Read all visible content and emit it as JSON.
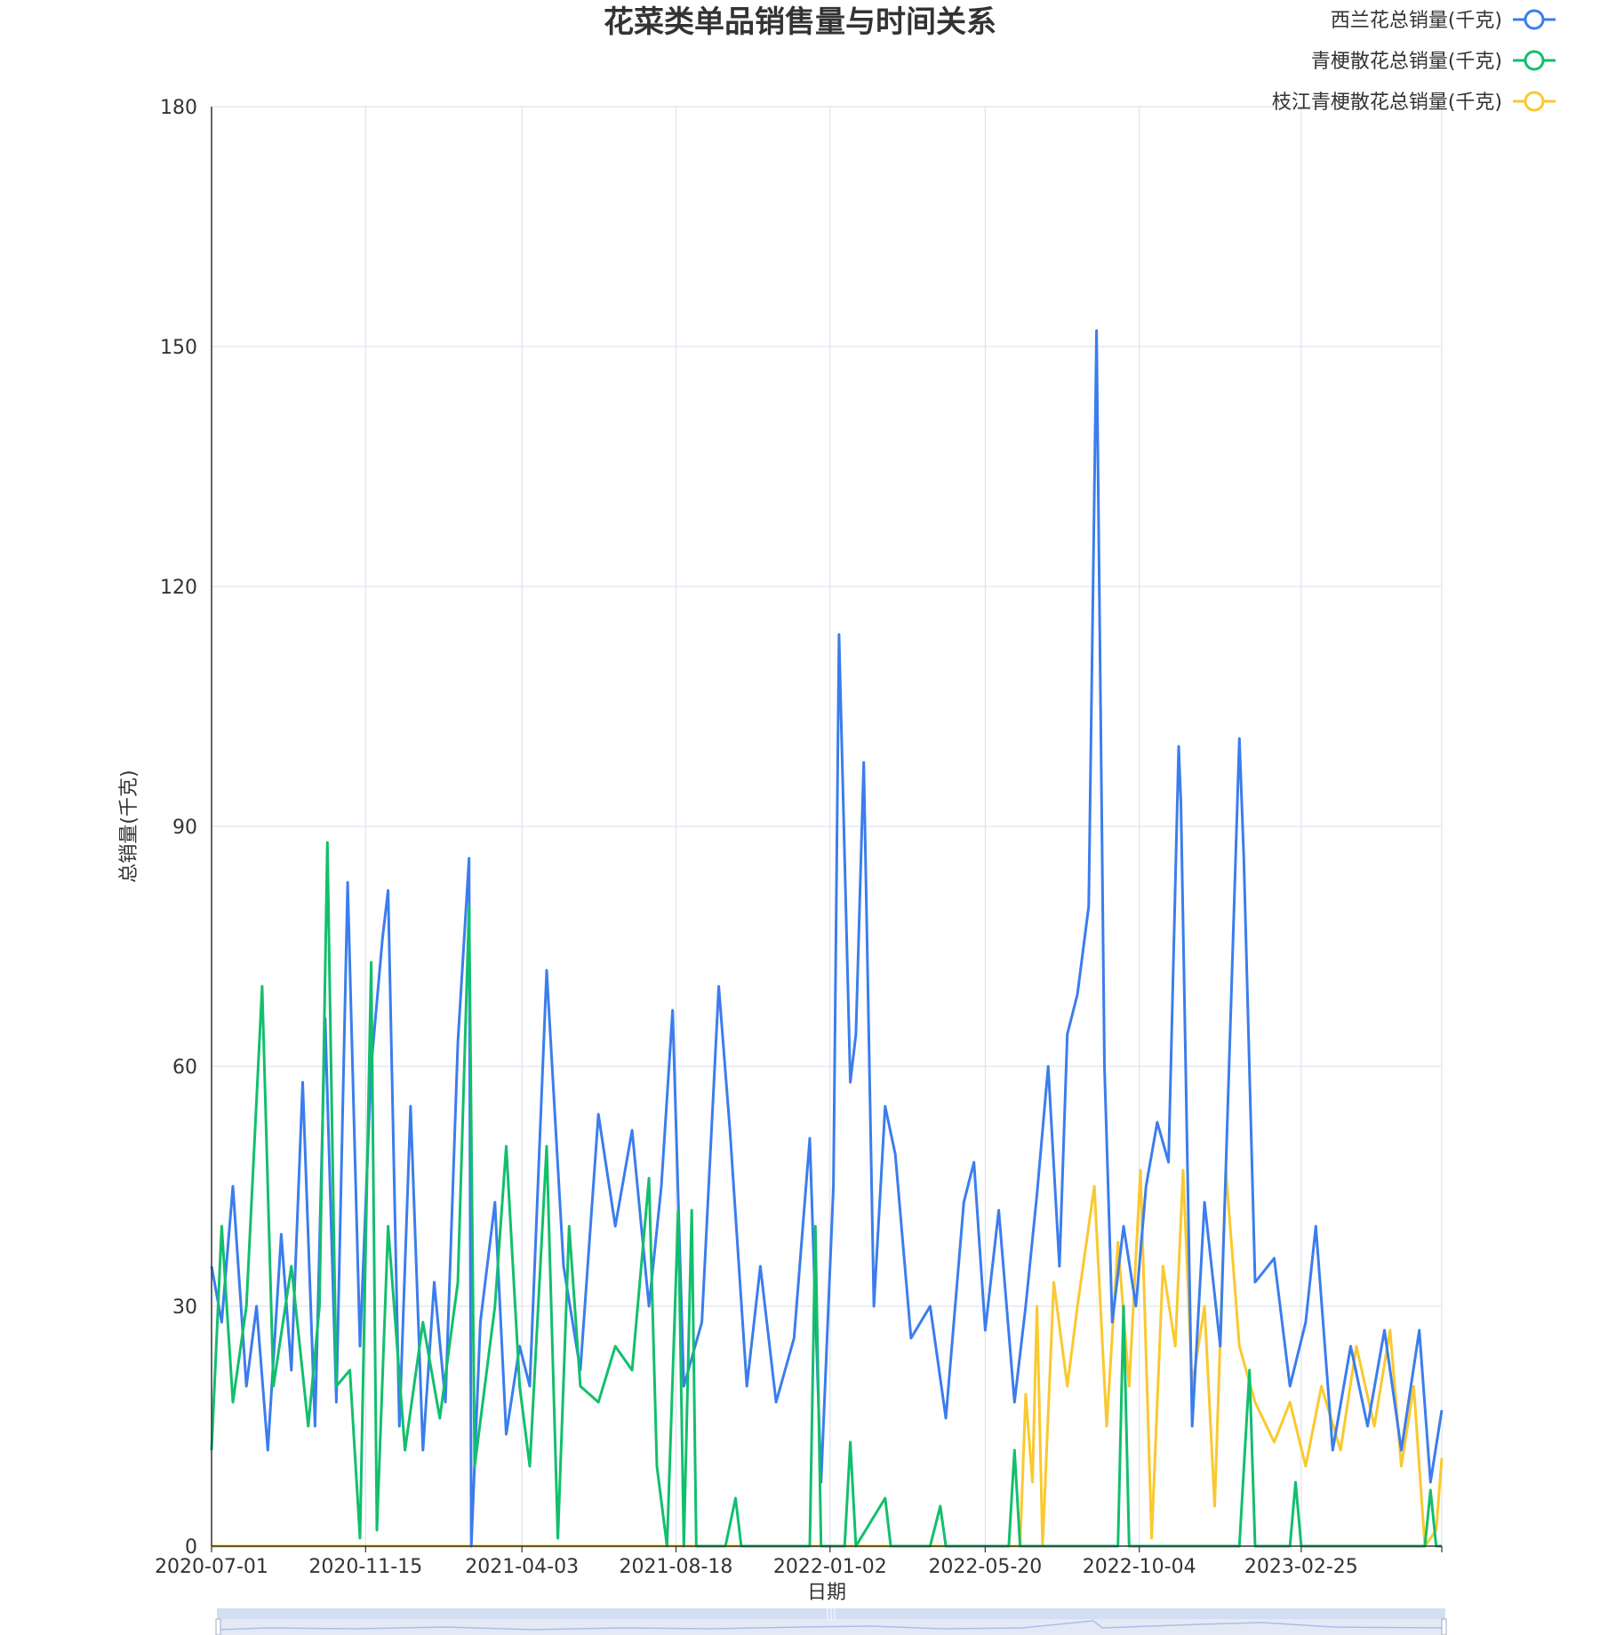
{
  "chart_data": {
    "type": "line",
    "title": "花菜类单品销售量与时间关系",
    "xlabel": "日期",
    "ylabel": "总销量(千克)",
    "ylim": [
      0,
      180
    ],
    "y_ticks": [
      0,
      30,
      60,
      90,
      120,
      150,
      180
    ],
    "x_range": [
      "2020-07-01",
      "2023-06-30"
    ],
    "x_ticks": [
      "2020-07-01",
      "2020-11-15",
      "2021-04-03",
      "2021-08-18",
      "2022-01-02",
      "2022-05-20",
      "2022-10-04",
      "2023-02-25"
    ],
    "grid": true,
    "legend_position": "top-right",
    "data_zoom_slider": true,
    "series": [
      {
        "name": "西兰花总销量(千克)",
        "color": "#3b7ded",
        "points": [
          [
            "2020-07-01",
            35
          ],
          [
            "2020-07-10",
            28
          ],
          [
            "2020-07-20",
            45
          ],
          [
            "2020-08-01",
            20
          ],
          [
            "2020-08-10",
            30
          ],
          [
            "2020-08-20",
            12
          ],
          [
            "2020-09-01",
            39
          ],
          [
            "2020-09-10",
            22
          ],
          [
            "2020-09-20",
            58
          ],
          [
            "2020-10-01",
            15
          ],
          [
            "2020-10-10",
            66
          ],
          [
            "2020-10-20",
            18
          ],
          [
            "2020-10-30",
            83
          ],
          [
            "2020-11-10",
            25
          ],
          [
            "2020-11-20",
            60
          ],
          [
            "2020-11-30",
            76
          ],
          [
            "2020-12-05",
            82
          ],
          [
            "2020-12-15",
            15
          ],
          [
            "2020-12-25",
            55
          ],
          [
            "2021-01-05",
            12
          ],
          [
            "2021-01-15",
            33
          ],
          [
            "2021-01-25",
            18
          ],
          [
            "2021-02-05",
            63
          ],
          [
            "2021-02-15",
            86
          ],
          [
            "2021-02-17",
            0
          ],
          [
            "2021-02-25",
            28
          ],
          [
            "2021-03-10",
            43
          ],
          [
            "2021-03-20",
            14
          ],
          [
            "2021-04-01",
            25
          ],
          [
            "2021-04-10",
            20
          ],
          [
            "2021-04-25",
            72
          ],
          [
            "2021-05-10",
            35
          ],
          [
            "2021-05-25",
            22
          ],
          [
            "2021-06-10",
            54
          ],
          [
            "2021-06-25",
            40
          ],
          [
            "2021-07-10",
            52
          ],
          [
            "2021-07-25",
            30
          ],
          [
            "2021-08-05",
            45
          ],
          [
            "2021-08-15",
            67
          ],
          [
            "2021-08-25",
            20
          ],
          [
            "2021-09-10",
            28
          ],
          [
            "2021-09-25",
            70
          ],
          [
            "2021-10-05",
            52
          ],
          [
            "2021-10-20",
            20
          ],
          [
            "2021-11-01",
            35
          ],
          [
            "2021-11-15",
            18
          ],
          [
            "2021-12-01",
            26
          ],
          [
            "2021-12-15",
            51
          ],
          [
            "2021-12-25",
            8
          ],
          [
            "2022-01-05",
            45
          ],
          [
            "2022-01-10",
            114
          ],
          [
            "2022-01-20",
            58
          ],
          [
            "2022-01-25",
            64
          ],
          [
            "2022-02-01",
            98
          ],
          [
            "2022-02-10",
            30
          ],
          [
            "2022-02-20",
            55
          ],
          [
            "2022-03-01",
            49
          ],
          [
            "2022-03-15",
            26
          ],
          [
            "2022-04-01",
            30
          ],
          [
            "2022-04-15",
            16
          ],
          [
            "2022-05-01",
            43
          ],
          [
            "2022-05-10",
            48
          ],
          [
            "2022-05-20",
            27
          ],
          [
            "2022-06-01",
            42
          ],
          [
            "2022-06-15",
            18
          ],
          [
            "2022-06-25",
            30
          ],
          [
            "2022-07-05",
            44
          ],
          [
            "2022-07-15",
            60
          ],
          [
            "2022-07-25",
            35
          ],
          [
            "2022-08-01",
            64
          ],
          [
            "2022-08-10",
            69
          ],
          [
            "2022-08-20",
            80
          ],
          [
            "2022-08-27",
            152
          ],
          [
            "2022-09-03",
            60
          ],
          [
            "2022-09-10",
            28
          ],
          [
            "2022-09-20",
            40
          ],
          [
            "2022-10-01",
            30
          ],
          [
            "2022-10-10",
            45
          ],
          [
            "2022-10-20",
            53
          ],
          [
            "2022-10-30",
            48
          ],
          [
            "2022-11-08",
            100
          ],
          [
            "2022-11-10",
            93
          ],
          [
            "2022-11-20",
            15
          ],
          [
            "2022-12-01",
            43
          ],
          [
            "2022-12-15",
            25
          ],
          [
            "2023-01-01",
            101
          ],
          [
            "2023-01-05",
            86
          ],
          [
            "2023-01-15",
            33
          ],
          [
            "2023-02-01",
            36
          ],
          [
            "2023-02-15",
            20
          ],
          [
            "2023-03-01",
            28
          ],
          [
            "2023-03-10",
            40
          ],
          [
            "2023-03-25",
            12
          ],
          [
            "2023-04-10",
            25
          ],
          [
            "2023-04-25",
            15
          ],
          [
            "2023-05-10",
            27
          ],
          [
            "2023-05-25",
            12
          ],
          [
            "2023-06-10",
            27
          ],
          [
            "2023-06-20",
            8
          ],
          [
            "2023-06-30",
            17
          ]
        ]
      },
      {
        "name": "青梗散花总销量(千克)",
        "color": "#12bf6c",
        "points": [
          [
            "2020-07-01",
            12
          ],
          [
            "2020-07-10",
            40
          ],
          [
            "2020-07-20",
            18
          ],
          [
            "2020-08-01",
            30
          ],
          [
            "2020-08-15",
            70
          ],
          [
            "2020-08-25",
            20
          ],
          [
            "2020-09-10",
            35
          ],
          [
            "2020-09-25",
            15
          ],
          [
            "2020-10-05",
            30
          ],
          [
            "2020-10-12",
            88
          ],
          [
            "2020-10-20",
            20
          ],
          [
            "2020-11-01",
            22
          ],
          [
            "2020-11-10",
            1
          ],
          [
            "2020-11-20",
            73
          ],
          [
            "2020-11-25",
            2
          ],
          [
            "2020-12-05",
            40
          ],
          [
            "2020-12-20",
            12
          ],
          [
            "2021-01-05",
            28
          ],
          [
            "2021-01-20",
            16
          ],
          [
            "2021-02-05",
            33
          ],
          [
            "2021-02-15",
            80
          ],
          [
            "2021-02-20",
            10
          ],
          [
            "2021-03-10",
            30
          ],
          [
            "2021-03-20",
            50
          ],
          [
            "2021-04-01",
            20
          ],
          [
            "2021-04-10",
            10
          ],
          [
            "2021-04-25",
            50
          ],
          [
            "2021-05-05",
            1
          ],
          [
            "2021-05-15",
            40
          ],
          [
            "2021-05-25",
            20
          ],
          [
            "2021-06-10",
            18
          ],
          [
            "2021-06-25",
            25
          ],
          [
            "2021-07-10",
            22
          ],
          [
            "2021-07-25",
            46
          ],
          [
            "2021-08-01",
            10
          ],
          [
            "2021-08-10",
            0
          ],
          [
            "2021-08-20",
            42
          ],
          [
            "2021-08-25",
            0
          ],
          [
            "2021-09-01",
            42
          ],
          [
            "2021-09-05",
            0
          ],
          [
            "2021-10-01",
            0
          ],
          [
            "2021-10-10",
            6
          ],
          [
            "2021-10-15",
            0
          ],
          [
            "2021-12-15",
            0
          ],
          [
            "2021-12-20",
            40
          ],
          [
            "2021-12-25",
            0
          ],
          [
            "2022-01-15",
            0
          ],
          [
            "2022-01-20",
            13
          ],
          [
            "2022-01-25",
            0
          ],
          [
            "2022-02-20",
            6
          ],
          [
            "2022-02-25",
            0
          ],
          [
            "2022-04-01",
            0
          ],
          [
            "2022-04-10",
            5
          ],
          [
            "2022-04-15",
            0
          ],
          [
            "2022-06-10",
            0
          ],
          [
            "2022-06-15",
            12
          ],
          [
            "2022-06-20",
            0
          ],
          [
            "2022-09-15",
            0
          ],
          [
            "2022-09-20",
            30
          ],
          [
            "2022-09-25",
            0
          ],
          [
            "2023-01-01",
            0
          ],
          [
            "2023-01-10",
            22
          ],
          [
            "2023-01-15",
            0
          ],
          [
            "2023-02-15",
            0
          ],
          [
            "2023-02-20",
            8
          ],
          [
            "2023-02-25",
            0
          ],
          [
            "2023-06-15",
            0
          ],
          [
            "2023-06-20",
            7
          ],
          [
            "2023-06-25",
            0
          ],
          [
            "2023-06-30",
            0
          ]
        ]
      },
      {
        "name": "枝江青梗散花总销量(千克)",
        "color": "#fac92e",
        "points": [
          [
            "2020-07-01",
            0
          ],
          [
            "2022-06-20",
            0
          ],
          [
            "2022-06-25",
            19
          ],
          [
            "2022-07-01",
            8
          ],
          [
            "2022-07-05",
            30
          ],
          [
            "2022-07-10",
            0
          ],
          [
            "2022-07-20",
            33
          ],
          [
            "2022-08-01",
            20
          ],
          [
            "2022-08-10",
            30
          ],
          [
            "2022-08-20",
            40
          ],
          [
            "2022-08-25",
            45
          ],
          [
            "2022-09-05",
            15
          ],
          [
            "2022-09-15",
            38
          ],
          [
            "2022-09-25",
            20
          ],
          [
            "2022-10-05",
            47
          ],
          [
            "2022-10-15",
            1
          ],
          [
            "2022-10-25",
            35
          ],
          [
            "2022-11-05",
            25
          ],
          [
            "2022-11-12",
            47
          ],
          [
            "2022-11-20",
            20
          ],
          [
            "2022-12-01",
            30
          ],
          [
            "2022-12-10",
            5
          ],
          [
            "2022-12-20",
            47
          ],
          [
            "2023-01-01",
            25
          ],
          [
            "2023-01-15",
            18
          ],
          [
            "2023-02-01",
            13
          ],
          [
            "2023-02-15",
            18
          ],
          [
            "2023-03-01",
            10
          ],
          [
            "2023-03-15",
            20
          ],
          [
            "2023-04-01",
            12
          ],
          [
            "2023-04-15",
            25
          ],
          [
            "2023-05-01",
            15
          ],
          [
            "2023-05-15",
            27
          ],
          [
            "2023-05-25",
            10
          ],
          [
            "2023-06-05",
            20
          ],
          [
            "2023-06-15",
            0
          ],
          [
            "2023-06-25",
            2
          ],
          [
            "2023-06-30",
            11
          ]
        ]
      }
    ]
  }
}
